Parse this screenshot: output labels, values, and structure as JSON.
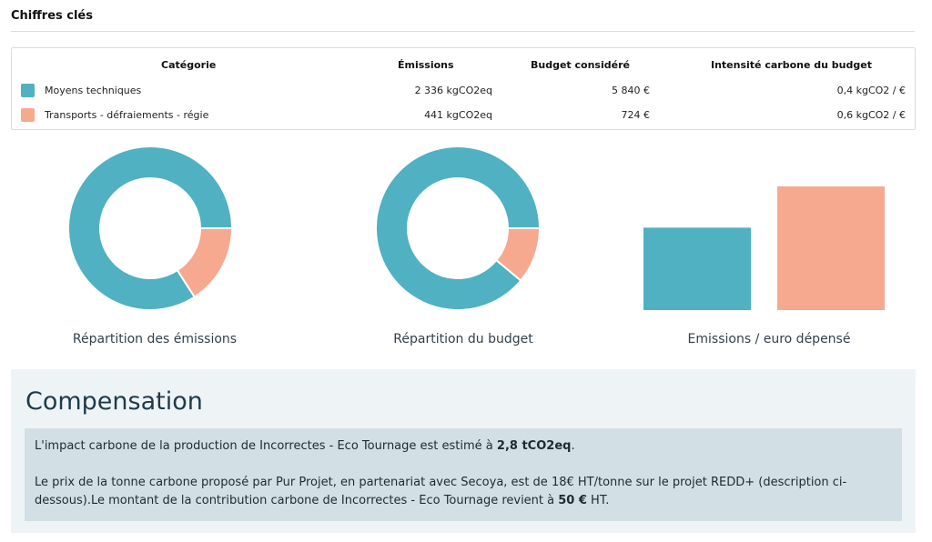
{
  "header": {
    "title": "Chiffres clés"
  },
  "table": {
    "columns": [
      "Catégorie",
      "Émissions",
      "Budget considéré",
      "Intensité carbone du budget"
    ],
    "rows": [
      {
        "category": "Moyens techniques",
        "color": "#4fb1c1",
        "emissions": "2 336 kgCO2eq",
        "budget": "5 840 €",
        "intensity": "0,4 kgCO2 / €"
      },
      {
        "category": "Transports - défraiements - régie",
        "color": "#f6a98e",
        "emissions": "441 kgCO2eq",
        "budget": "724 €",
        "intensity": "0,6 kgCO2 / €"
      }
    ]
  },
  "charts": {
    "colors": {
      "primary": "#4fb1c1",
      "secondary": "#f6a98e"
    },
    "emissions_caption": "Répartition des émissions",
    "budget_caption": "Répartition du budget",
    "intensity_caption": "Emissions / euro dépensé"
  },
  "chart_data": [
    {
      "type": "pie",
      "title": "Répartition des émissions",
      "categories": [
        "Moyens techniques",
        "Transports - défraiements - régie"
      ],
      "values": [
        2336,
        441
      ]
    },
    {
      "type": "pie",
      "title": "Répartition du budget",
      "categories": [
        "Moyens techniques",
        "Transports - défraiements - régie"
      ],
      "values": [
        5840,
        724
      ]
    },
    {
      "type": "bar",
      "title": "Emissions / euro dépensé",
      "categories": [
        "Moyens techniques",
        "Transports - défraiements - régie"
      ],
      "values": [
        0.4,
        0.6
      ]
    }
  ],
  "compensation": {
    "title": "Compensation",
    "p1_prefix": "L'impact carbone de la production de Incorrectes - Eco Tournage est estimé à ",
    "p1_value": "2,8 tCO2eq",
    "p1_suffix": ".",
    "p2_prefix": "Le prix de la tonne carbone proposé par Pur Projet, en partenariat avec Secoya, est de 18€ HT/tonne sur le projet REDD+ (description ci-dessous).Le montant de la contribution carbone de Incorrectes - Eco Tournage revient à ",
    "p2_value": "50 €",
    "p2_suffix": " HT."
  }
}
